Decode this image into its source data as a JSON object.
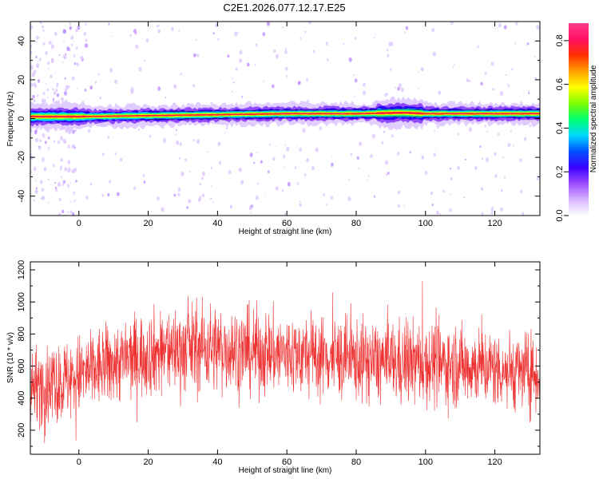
{
  "title": "C2E1.2026.077.12.17.E25",
  "chart_data": [
    {
      "type": "heatmap",
      "xlabel": "Height of straight line (km)",
      "ylabel": "Frequency (Hz)",
      "xlim": [
        -14,
        133
      ],
      "ylim": [
        -50,
        50
      ],
      "x_ticks": [
        0,
        20,
        40,
        60,
        80,
        100,
        120
      ],
      "y_ticks": [
        -40,
        -20,
        0,
        20,
        40
      ],
      "grid": false,
      "colorbar": {
        "label": "Normalized spectral amplitude",
        "range": [
          0,
          0.88
        ],
        "ticks": [
          0.0,
          0.2,
          0.4,
          0.6,
          0.8
        ],
        "colormap": [
          "#ffffff",
          "#d6b4ff",
          "#9b4dff",
          "#3a00ff",
          "#0050ff",
          "#00d8ff",
          "#00ff70",
          "#7dff00",
          "#ffff00",
          "#ffa000",
          "#ff3000",
          "#ff1060",
          "#ff3c8c"
        ]
      },
      "ridge": [
        {
          "x": -14,
          "f": 1.0
        },
        {
          "x": 0,
          "f": 1.0
        },
        {
          "x": 20,
          "f": 1.5
        },
        {
          "x": 40,
          "f": 2.0
        },
        {
          "x": 60,
          "f": 2.5
        },
        {
          "x": 80,
          "f": 2.5
        },
        {
          "x": 94,
          "f": 3.0
        },
        {
          "x": 100,
          "f": 2.5
        },
        {
          "x": 133,
          "f": 2.5
        }
      ]
    },
    {
      "type": "line",
      "xlabel": "Height of straight line (km)",
      "ylabel": "SNR (10 * v/v)",
      "xlim": [
        -14,
        133
      ],
      "ylim": [
        50,
        1250
      ],
      "x_ticks": [
        0,
        20,
        40,
        60,
        80,
        100,
        120
      ],
      "y_ticks": [
        200,
        400,
        600,
        800,
        1000,
        1200
      ],
      "grid": false,
      "color": "#ee3333",
      "envelope": [
        {
          "x": -14,
          "mean": 470,
          "spread": 210
        },
        {
          "x": -5,
          "mean": 500,
          "spread": 230
        },
        {
          "x": 0,
          "mean": 540,
          "spread": 230
        },
        {
          "x": 10,
          "mean": 620,
          "spread": 230
        },
        {
          "x": 20,
          "mean": 680,
          "spread": 240
        },
        {
          "x": 35,
          "mean": 720,
          "spread": 250
        },
        {
          "x": 50,
          "mean": 690,
          "spread": 240
        },
        {
          "x": 70,
          "mean": 660,
          "spread": 230
        },
        {
          "x": 90,
          "mean": 620,
          "spread": 230
        },
        {
          "x": 100,
          "mean": 620,
          "spread": 240
        },
        {
          "x": 115,
          "mean": 600,
          "spread": 220
        },
        {
          "x": 133,
          "mean": 550,
          "spread": 220
        }
      ]
    }
  ]
}
